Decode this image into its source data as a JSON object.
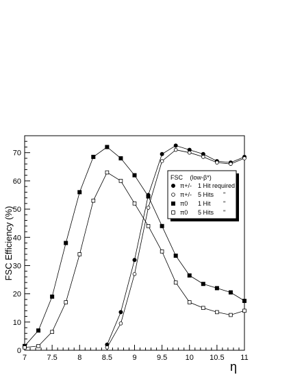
{
  "chart_data": {
    "type": "line",
    "xlabel": "η",
    "ylabel": "FSC Efficiency  (%)",
    "xlim": [
      7,
      11
    ],
    "ylim": [
      0,
      75
    ],
    "grid": false,
    "legend_position": "right",
    "x_ticks": [
      "7",
      "7.5",
      "8",
      "8.5",
      "9",
      "9.5",
      "10",
      "10.5",
      "11"
    ],
    "y_ticks": [
      "0",
      "10",
      "20",
      "30",
      "40",
      "50",
      "60",
      "70"
    ],
    "legend": {
      "title_prefix": "FSC",
      "title_suffix": "(low-β*)",
      "entries": [
        {
          "particle": "π+/-",
          "hits": "1 Hit required",
          "marker": "filled-circle"
        },
        {
          "particle": "π+/-",
          "hits": "5 Hits",
          "ditto": "''",
          "marker": "open-circle"
        },
        {
          "particle": "π0",
          "hits": "1 Hit",
          "ditto": "''",
          "marker": "filled-square"
        },
        {
          "particle": "π0",
          "hits": "5 Hits",
          "ditto": "''",
          "marker": "open-square"
        }
      ]
    },
    "series": [
      {
        "marker": "filled-circle",
        "x": [
          8.5,
          8.75,
          9.0,
          9.25,
          9.5,
          9.75,
          10.0,
          10.25,
          10.5,
          10.75,
          11.0
        ],
        "values": [
          2,
          13.5,
          32,
          55,
          69.5,
          72.5,
          71,
          69.5,
          67,
          66.5,
          68.5
        ]
      },
      {
        "marker": "open-circle",
        "x": [
          8.5,
          8.75,
          9.0,
          9.25,
          9.5,
          9.75,
          10.0,
          10.25,
          10.5,
          10.75,
          11.0
        ],
        "values": [
          1,
          9.5,
          27,
          50.5,
          67,
          71,
          70,
          68.5,
          66.5,
          66,
          68
        ]
      },
      {
        "marker": "filled-square",
        "x": [
          7.0,
          7.25,
          7.5,
          7.75,
          8.0,
          8.25,
          8.5,
          8.75,
          9.0,
          9.25,
          9.5,
          9.75,
          10.0,
          10.25,
          10.5,
          10.75,
          11.0
        ],
        "values": [
          1.5,
          7,
          19,
          38,
          56,
          68.5,
          72,
          68,
          62,
          54.5,
          44,
          33.5,
          26.5,
          23.5,
          22,
          20.5,
          17.5
        ]
      },
      {
        "marker": "open-square",
        "x": [
          7.0,
          7.25,
          7.5,
          7.75,
          8.0,
          8.25,
          8.5,
          8.75,
          9.0,
          9.25,
          9.5,
          9.75,
          10.0,
          10.25,
          10.5,
          10.75,
          11.0
        ],
        "values": [
          1,
          1.5,
          6.5,
          17,
          34,
          53,
          63,
          60,
          52,
          44,
          35,
          24,
          17,
          15,
          13.5,
          12.5,
          14
        ]
      }
    ]
  }
}
